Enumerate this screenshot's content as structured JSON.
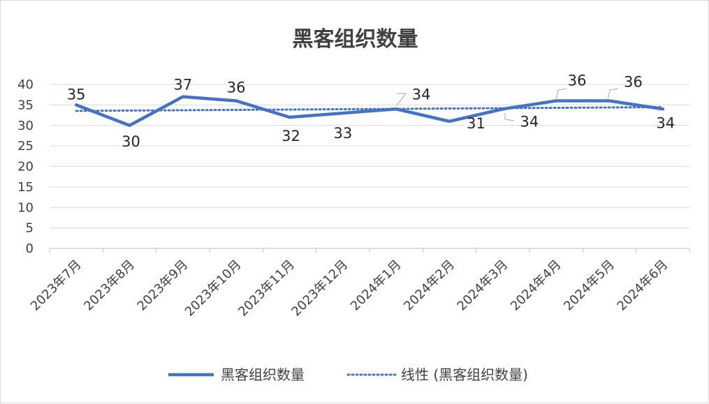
{
  "chart_data": {
    "type": "line",
    "title": "黑客组织数量",
    "categories": [
      "2023年7月",
      "2023年8月",
      "2023年9月",
      "2023年10月",
      "2023年11月",
      "2023年12月",
      "2024年1月",
      "2024年2月",
      "2024年3月",
      "2024年4月",
      "2024年5月",
      "2024年6月"
    ],
    "series": [
      {
        "name": "黑客组织数量",
        "values": [
          35,
          30,
          37,
          36,
          32,
          33,
          34,
          31,
          34,
          36,
          36,
          34
        ],
        "color": "#4472c4",
        "style": "solid"
      },
      {
        "name": "线性 (黑客组织数量)",
        "trendline": "linear",
        "color": "#4472c4",
        "style": "dotted"
      }
    ],
    "y_ticks": [
      "0",
      "5",
      "10",
      "15",
      "20",
      "25",
      "30",
      "35",
      "40"
    ],
    "ylim": [
      0,
      40
    ],
    "grid": true,
    "legend": "bottom"
  }
}
